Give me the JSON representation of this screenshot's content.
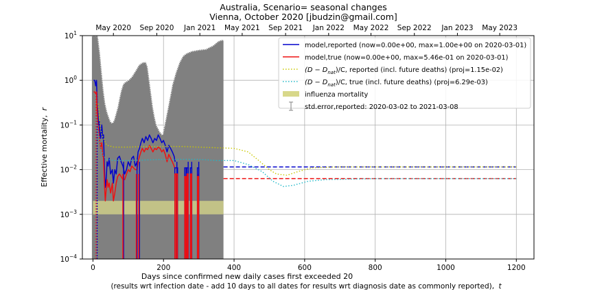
{
  "chart_data": {
    "type": "line",
    "title": "Australia, Scenario= seasonal changes",
    "subtitle": "Vienna, October 2020 [jbudzin@gmail.com]",
    "xlabel": "Days since confirmed new daily cases first exceeded 20",
    "xlabel2_prefix": "(results wrt infection date - add 10 days to all dates for results wrt diagnosis date as commonly reported),",
    "xlabel2_var": "t",
    "ylabel_text": "Effective mortality,",
    "ylabel_var": "r",
    "xlim": [
      -30,
      1250
    ],
    "ylim": [
      0.0001,
      10
    ],
    "yscale": "log",
    "grid": true,
    "legend_position": "top-right",
    "x_ticks": [
      0,
      200,
      400,
      600,
      800,
      1000,
      1200
    ],
    "x_tick_labels": [
      "0",
      "200",
      "400",
      "600",
      "800",
      "1000",
      "1200"
    ],
    "y_ticks": [
      0.0001,
      0.001,
      0.01,
      0.1,
      1,
      10
    ],
    "y_tick_labels": [
      {
        "base": "10",
        "exp": "−4"
      },
      {
        "base": "10",
        "exp": "−3"
      },
      {
        "base": "10",
        "exp": "−2"
      },
      {
        "base": "10",
        "exp": "−1"
      },
      {
        "base": "10",
        "exp": "0"
      },
      {
        "base": "10",
        "exp": "1"
      }
    ],
    "top_axis_ticks": [
      {
        "x": 58,
        "label": "May 2020"
      },
      {
        "x": 181,
        "label": "Sep 2020"
      },
      {
        "x": 303,
        "label": "Jan 2021"
      },
      {
        "x": 423,
        "label": "May 2021"
      },
      {
        "x": 546,
        "label": "Sep 2021"
      },
      {
        "x": 668,
        "label": "Jan 2022"
      },
      {
        "x": 788,
        "label": "May 2022"
      },
      {
        "x": 911,
        "label": "Sep 2022"
      },
      {
        "x": 1033,
        "label": "Jan 2023"
      },
      {
        "x": 1153,
        "label": "May 2023"
      }
    ],
    "colors": {
      "reported": "#0000cc",
      "true": "#ee1111",
      "reported_proj": "#c8c800",
      "true_proj": "#1fb8c8",
      "influenza": "#d8d88a",
      "stderr": "#808080",
      "stderr_edge": "#ffffff"
    },
    "legend": [
      {
        "label": "model,reported (now=0.00e+00, max=1.00e+00 on 2020-03-01)",
        "style": "line",
        "color": "#0000cc"
      },
      {
        "label": "model,true (now=0.00e+00, max=5.46e-01 on 2020-03-01)",
        "style": "line",
        "color": "#ee1111"
      },
      {
        "label_prefix": "(D − D",
        "label_sub": "nat",
        "label_suffix": ")/C, reported (incl. future deaths) (proj=1.15e-02)",
        "style": "dotted",
        "color": "#c8c800"
      },
      {
        "label_prefix": "(D − D",
        "label_sub": "nat",
        "label_suffix": ")/C, true (incl. future deaths) (proj=6.29e-03)",
        "style": "dotted",
        "color": "#1fb8c8"
      },
      {
        "label": "influenza mortality",
        "style": "patch",
        "color": "#d8d88a"
      },
      {
        "label": "std.error,reported: 2020-03-02 to 2021-03-08",
        "style": "errorbar",
        "color": "#808080"
      }
    ],
    "influenza_band": [
      0.001,
      0.002,
      0,
      370
    ],
    "stderr_upper": [
      [
        -3,
        10
      ],
      [
        14,
        10
      ],
      [
        20,
        4
      ],
      [
        25,
        1.5
      ],
      [
        30,
        0.6
      ],
      [
        35,
        0.3
      ],
      [
        40,
        0.2
      ],
      [
        45,
        0.15
      ],
      [
        50,
        0.12
      ],
      [
        55,
        0.11
      ],
      [
        60,
        0.13
      ],
      [
        65,
        0.18
      ],
      [
        70,
        0.25
      ],
      [
        75,
        0.4
      ],
      [
        80,
        0.6
      ],
      [
        85,
        0.8
      ],
      [
        90,
        0.9
      ],
      [
        100,
        1.0
      ],
      [
        110,
        1.2
      ],
      [
        120,
        1.6
      ],
      [
        130,
        2.2
      ],
      [
        140,
        2.5
      ],
      [
        150,
        2.6
      ],
      [
        155,
        2.0
      ],
      [
        160,
        1.0
      ],
      [
        165,
        0.5
      ],
      [
        170,
        0.25
      ],
      [
        175,
        0.15
      ],
      [
        180,
        0.1
      ],
      [
        190,
        0.07
      ],
      [
        197,
        0.06
      ],
      [
        205,
        0.12
      ],
      [
        215,
        0.3
      ],
      [
        225,
        0.8
      ],
      [
        235,
        1.5
      ],
      [
        245,
        2.5
      ],
      [
        255,
        3.5
      ],
      [
        265,
        4.0
      ],
      [
        280,
        4.5
      ],
      [
        300,
        4.8
      ],
      [
        320,
        5.0
      ],
      [
        340,
        6.0
      ],
      [
        355,
        7.5
      ],
      [
        365,
        8.0
      ],
      [
        370,
        8.0
      ]
    ],
    "series": [
      {
        "name": "model,reported",
        "key": "reported",
        "style": "solid",
        "points": [
          [
            2,
            1.0
          ],
          [
            5,
            1.0
          ],
          [
            8,
            0.75
          ],
          [
            10,
            1.0
          ],
          [
            12,
            0.3
          ],
          [
            14,
            0.2
          ],
          [
            16,
            0.1
          ],
          [
            18,
            0.12
          ],
          [
            20,
            0.06
          ],
          [
            22,
            0.05
          ],
          [
            25,
            0.1
          ],
          [
            28,
            0.05
          ],
          [
            30,
            0.06
          ],
          [
            33,
            0.008
          ],
          [
            35,
            0.004
          ],
          [
            38,
            0.007
          ],
          [
            40,
            0.015
          ],
          [
            43,
            0.012
          ],
          [
            46,
            0.018
          ],
          [
            50,
            0.008
          ],
          [
            55,
            0.01
          ],
          [
            58,
            0.005
          ],
          [
            62,
            0.01
          ],
          [
            66,
            0.008
          ],
          [
            70,
            0.018
          ],
          [
            75,
            0.02
          ],
          [
            80,
            0.015
          ],
          [
            85,
            0.012
          ],
          [
            90,
            0.008
          ],
          [
            95,
            0.01
          ],
          [
            100,
            0.015
          ],
          [
            105,
            0.012
          ],
          [
            110,
            0.018
          ],
          [
            115,
            0.02
          ],
          [
            120,
            0.012
          ],
          [
            125,
            0.015
          ],
          [
            128,
            0.025
          ],
          [
            132,
            0.03
          ],
          [
            136,
            0.04
          ],
          [
            140,
            0.05
          ],
          [
            145,
            0.04
          ],
          [
            150,
            0.055
          ],
          [
            155,
            0.045
          ],
          [
            160,
            0.06
          ],
          [
            165,
            0.05
          ],
          [
            170,
            0.04
          ],
          [
            175,
            0.05
          ],
          [
            180,
            0.045
          ],
          [
            185,
            0.06
          ],
          [
            190,
            0.05
          ],
          [
            195,
            0.04
          ],
          [
            200,
            0.045
          ],
          [
            205,
            0.035
          ],
          [
            210,
            0.025
          ],
          [
            215,
            0.035
          ],
          [
            220,
            0.03
          ],
          [
            225,
            0.025
          ],
          [
            230,
            0.02
          ],
          [
            233,
            0.015
          ]
        ],
        "extension": {
          "x0": 370,
          "x1": 1200,
          "value": 0.0115
        }
      },
      {
        "name": "model,true",
        "key": "true",
        "style": "solid",
        "points": [
          [
            2,
            0.55
          ],
          [
            5,
            0.55
          ],
          [
            8,
            0.5
          ],
          [
            10,
            0.55
          ],
          [
            12,
            0.2
          ],
          [
            14,
            0.1
          ],
          [
            16,
            0.08
          ],
          [
            18,
            0.05
          ],
          [
            20,
            0.04
          ],
          [
            22,
            0.03
          ],
          [
            25,
            0.04
          ],
          [
            28,
            0.02
          ],
          [
            30,
            0.02
          ],
          [
            33,
            0.004
          ],
          [
            35,
            0.002
          ],
          [
            38,
            0.004
          ],
          [
            40,
            0.006
          ],
          [
            43,
            0.004
          ],
          [
            46,
            0.005
          ],
          [
            50,
            0.003
          ],
          [
            55,
            0.005
          ],
          [
            58,
            0.002
          ],
          [
            62,
            0.003
          ],
          [
            66,
            0.005
          ],
          [
            70,
            0.007
          ],
          [
            75,
            0.008
          ],
          [
            80,
            0.007
          ],
          [
            85,
            0.006
          ],
          [
            90,
            0.006
          ],
          [
            95,
            0.008
          ],
          [
            100,
            0.01
          ],
          [
            105,
            0.009
          ],
          [
            110,
            0.012
          ],
          [
            115,
            0.011
          ],
          [
            120,
            0.01
          ],
          [
            125,
            0.01
          ],
          [
            128,
            0.015
          ],
          [
            132,
            0.02
          ],
          [
            136,
            0.025
          ],
          [
            140,
            0.03
          ],
          [
            145,
            0.025
          ],
          [
            150,
            0.03
          ],
          [
            155,
            0.028
          ],
          [
            160,
            0.035
          ],
          [
            165,
            0.03
          ],
          [
            170,
            0.025
          ],
          [
            175,
            0.03
          ],
          [
            180,
            0.028
          ],
          [
            185,
            0.032
          ],
          [
            190,
            0.03
          ],
          [
            195,
            0.025
          ],
          [
            200,
            0.028
          ],
          [
            205,
            0.022
          ],
          [
            210,
            0.015
          ],
          [
            215,
            0.022
          ],
          [
            220,
            0.018
          ],
          [
            225,
            0.015
          ],
          [
            230,
            0.012
          ],
          [
            233,
            0.01
          ]
        ],
        "extension": {
          "x0": 370,
          "x1": 1200,
          "value": 0.0063
        }
      },
      {
        "name": "(D − D_nat)/C, reported (incl. future deaths)",
        "key": "reported_proj",
        "style": "dotted",
        "points": [
          [
            15,
            0.3
          ],
          [
            20,
            0.1
          ],
          [
            25,
            0.06
          ],
          [
            30,
            0.05
          ],
          [
            35,
            0.04
          ],
          [
            40,
            0.035
          ],
          [
            60,
            0.032
          ],
          [
            100,
            0.032
          ],
          [
            150,
            0.033
          ],
          [
            200,
            0.033
          ],
          [
            250,
            0.033
          ],
          [
            300,
            0.032
          ],
          [
            350,
            0.031
          ],
          [
            400,
            0.03
          ],
          [
            440,
            0.025
          ],
          [
            470,
            0.016
          ],
          [
            500,
            0.01
          ],
          [
            520,
            0.008
          ],
          [
            550,
            0.0075
          ],
          [
            580,
            0.009
          ],
          [
            620,
            0.011
          ],
          [
            700,
            0.0115
          ],
          [
            800,
            0.0115
          ],
          [
            1000,
            0.0115
          ],
          [
            1200,
            0.0115
          ]
        ]
      },
      {
        "name": "(D − D_nat)/C, true (incl. future deaths)",
        "key": "true_proj",
        "style": "dotted",
        "points": [
          [
            10,
            0.15
          ],
          [
            15,
            0.07
          ],
          [
            20,
            0.04
          ],
          [
            25,
            0.025
          ],
          [
            30,
            0.02
          ],
          [
            40,
            0.017
          ],
          [
            60,
            0.016
          ],
          [
            100,
            0.016
          ],
          [
            200,
            0.017
          ],
          [
            300,
            0.017
          ],
          [
            350,
            0.016
          ],
          [
            400,
            0.016
          ],
          [
            440,
            0.013
          ],
          [
            480,
            0.009
          ],
          [
            510,
            0.0055
          ],
          [
            540,
            0.0042
          ],
          [
            570,
            0.0045
          ],
          [
            610,
            0.0055
          ],
          [
            660,
            0.006
          ],
          [
            800,
            0.0063
          ],
          [
            1000,
            0.0063
          ],
          [
            1200,
            0.0063
          ]
        ]
      }
    ],
    "drops": [
      {
        "x": 85,
        "series": "both"
      },
      {
        "x": 123,
        "series": "both"
      },
      {
        "x": 130,
        "series": "both"
      },
      {
        "x": 236,
        "series": "both"
      },
      {
        "x": 268,
        "series": "both"
      },
      {
        "x": 278,
        "series": "both"
      },
      {
        "x": 298,
        "series": "both"
      }
    ],
    "spikes": [
      {
        "x0": 232,
        "x1": 240,
        "top_r": 0.011,
        "top_t": 0.008
      },
      {
        "x0": 260,
        "x1": 264,
        "top_r": 0.011,
        "top_t": 0.007
      },
      {
        "x0": 266,
        "x1": 270,
        "top_r": 0.011,
        "top_t": 0.008
      },
      {
        "x0": 276,
        "x1": 280,
        "top_r": 0.011,
        "top_t": 0.008
      },
      {
        "x0": 296,
        "x1": 300,
        "top_r": 0.011,
        "top_t": 0.007
      }
    ],
    "early_vertical_dotted": [
      {
        "x": 9,
        "color": "#ee1111"
      },
      {
        "x": 12,
        "color": "#0000cc"
      }
    ]
  }
}
